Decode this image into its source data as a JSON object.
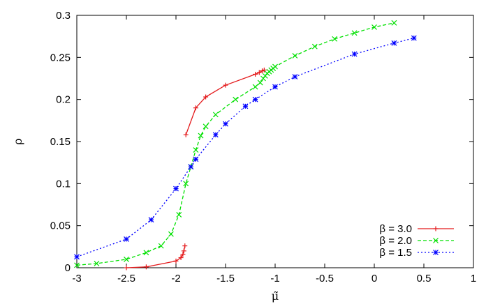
{
  "chart_data": {
    "type": "line",
    "title": "",
    "xlabel": "μ̃",
    "ylabel": "ρ",
    "xlim": [
      -3,
      1
    ],
    "ylim": [
      0,
      0.3
    ],
    "xticks": [
      "-3",
      "-2.5",
      "-2",
      "-1.5",
      "-1",
      "-0.5",
      "0",
      "0.5",
      "1"
    ],
    "yticks": [
      "0",
      "0.05",
      "0.1",
      "0.15",
      "0.2",
      "0.25",
      "0.3"
    ],
    "grid": false,
    "legend_position": "bottom-right",
    "series": [
      {
        "name": "β = 3.0",
        "color": "#e41a1c",
        "marker": "plus",
        "dash": "solid",
        "segments": [
          [
            [
              -2.5,
              0.0
            ],
            [
              -2.3,
              0.001
            ],
            [
              -2.0,
              0.008
            ],
            [
              -1.95,
              0.012
            ],
            [
              -1.93,
              0.016
            ],
            [
              -1.92,
              0.02
            ],
            [
              -1.91,
              0.026
            ]
          ],
          [
            [
              -1.9,
              0.158
            ],
            [
              -1.8,
              0.19
            ],
            [
              -1.7,
              0.203
            ],
            [
              -1.5,
              0.217
            ],
            [
              -1.2,
              0.23
            ],
            [
              -1.16,
              0.232
            ],
            [
              -1.13,
              0.234
            ],
            [
              -1.11,
              0.235
            ]
          ]
        ]
      },
      {
        "name": "β = 2.0",
        "color": "#00e000",
        "marker": "x",
        "dash": "dashed",
        "segments": [
          [
            [
              -3.0,
              0.003
            ],
            [
              -2.8,
              0.005
            ],
            [
              -2.5,
              0.01
            ],
            [
              -2.3,
              0.018
            ],
            [
              -2.15,
              0.026
            ],
            [
              -2.05,
              0.04
            ],
            [
              -1.97,
              0.063
            ],
            [
              -1.9,
              0.1
            ],
            [
              -1.85,
              0.12
            ],
            [
              -1.8,
              0.14
            ],
            [
              -1.75,
              0.157
            ],
            [
              -1.7,
              0.168
            ],
            [
              -1.6,
              0.182
            ],
            [
              -1.4,
              0.2
            ],
            [
              -1.2,
              0.215
            ],
            [
              -1.15,
              0.22
            ],
            [
              -1.12,
              0.225
            ],
            [
              -1.1,
              0.228
            ],
            [
              -1.08,
              0.231
            ],
            [
              -1.06,
              0.233
            ],
            [
              -1.04,
              0.235
            ],
            [
              -1.02,
              0.237
            ],
            [
              -1.0,
              0.239
            ],
            [
              -0.8,
              0.252
            ],
            [
              -0.6,
              0.263
            ],
            [
              -0.4,
              0.272
            ],
            [
              -0.2,
              0.279
            ],
            [
              0.0,
              0.286
            ],
            [
              0.2,
              0.291
            ]
          ]
        ]
      },
      {
        "name": "β = 1.5",
        "color": "#0000ff",
        "marker": "star",
        "dash": "dotted",
        "segments": [
          [
            [
              -3.0,
              0.013
            ],
            [
              -2.5,
              0.034
            ],
            [
              -2.25,
              0.057
            ],
            [
              -2.0,
              0.094
            ],
            [
              -1.85,
              0.12
            ],
            [
              -1.8,
              0.129
            ],
            [
              -1.6,
              0.158
            ],
            [
              -1.5,
              0.171
            ],
            [
              -1.3,
              0.192
            ],
            [
              -1.2,
              0.2
            ],
            [
              -1.0,
              0.215
            ],
            [
              -0.8,
              0.227
            ],
            [
              -0.2,
              0.254
            ],
            [
              0.2,
              0.267
            ],
            [
              0.4,
              0.273
            ]
          ]
        ]
      }
    ]
  }
}
